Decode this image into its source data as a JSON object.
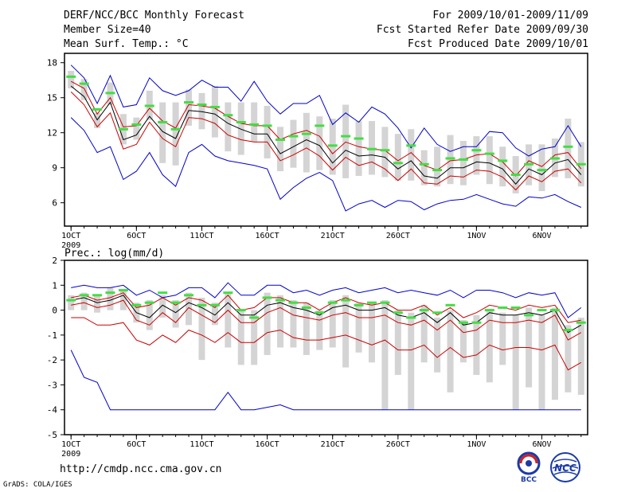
{
  "header": {
    "title": "DERF/NCC/BCC Monthly Forecast",
    "member_size": "Member Size=40",
    "variable": "Mean Surf. Temp.: °C",
    "period": "For 2009/10/01-2009/11/09",
    "refer_date": "Fcst Started Refer Date 2009/09/30",
    "produced_date": "Fcst Produced Date 2009/10/01"
  },
  "footer": {
    "url": "http://cmdp.ncc.cma.gov.cn",
    "credit": "GrADS: COLA/IGES",
    "logo_bcc": "BCC",
    "logo_ncc": "NCC"
  },
  "colors": {
    "envelope": "#0000cc",
    "quartile": "#cc0000",
    "mean": "#000000",
    "obs": "#44dd44",
    "box": "#d4d4d4"
  },
  "chart_data": [
    {
      "type": "line",
      "title": "Mean Surf. Temp.: °C",
      "x_days": 40,
      "x_tick_labels": [
        "1OCT",
        "6OCT",
        "11OCT",
        "16OCT",
        "21OCT",
        "26OCT",
        "1NOV",
        "6NOV"
      ],
      "x_tick_days": [
        1,
        6,
        11,
        16,
        21,
        26,
        32,
        37
      ],
      "year_label": "2009",
      "ylim": [
        4,
        18.8
      ],
      "yticks": [
        6,
        9,
        12,
        15,
        18
      ],
      "series": [
        {
          "name": "max",
          "values": [
            17.8,
            16.7,
            14.5,
            16.9,
            14.2,
            14.4,
            16.7,
            15.6,
            15.2,
            15.6,
            16.5,
            15.9,
            15.9,
            14.7,
            16.4,
            14.7,
            13.6,
            14.5,
            14.5,
            15.2,
            12.7,
            13.7,
            12.9,
            14.2,
            13.6,
            12.4,
            10.7,
            12.4,
            11.0,
            10.4,
            10.8,
            10.8,
            12.1,
            12.0,
            10.7,
            10.0,
            10.6,
            10.8,
            12.6,
            10.8
          ]
        },
        {
          "name": "q75",
          "values": [
            16.4,
            15.8,
            13.6,
            15.0,
            12.5,
            12.6,
            14.1,
            13.0,
            12.4,
            14.4,
            14.3,
            14.1,
            13.4,
            12.8,
            12.6,
            12.6,
            11.4,
            11.9,
            12.2,
            11.7,
            10.2,
            11.2,
            10.8,
            10.6,
            10.5,
            9.6,
            10.3,
            9.2,
            8.8,
            9.6,
            9.7,
            10.1,
            10.2,
            9.5,
            8.3,
            9.6,
            9.1,
            10.1,
            10.3,
            8.9
          ]
        },
        {
          "name": "mean",
          "values": [
            16.0,
            15.1,
            13.1,
            14.6,
            11.4,
            11.8,
            13.4,
            12.1,
            11.5,
            13.9,
            13.8,
            13.6,
            12.8,
            12.3,
            11.9,
            11.9,
            10.2,
            10.8,
            11.4,
            10.9,
            9.4,
            10.5,
            10.0,
            10.1,
            9.9,
            8.9,
            9.6,
            8.3,
            8.1,
            9.0,
            9.0,
            9.5,
            9.4,
            8.9,
            7.6,
            8.9,
            8.4,
            9.4,
            9.7,
            8.4
          ]
        },
        {
          "name": "q25",
          "values": [
            15.5,
            14.4,
            12.5,
            13.7,
            10.6,
            11.0,
            12.9,
            11.5,
            10.8,
            13.3,
            13.2,
            12.8,
            11.8,
            11.4,
            11.2,
            11.2,
            9.6,
            10.1,
            10.7,
            10.0,
            8.8,
            9.9,
            9.2,
            9.5,
            8.9,
            7.9,
            8.9,
            7.7,
            7.6,
            8.3,
            8.2,
            8.8,
            8.7,
            8.2,
            7.1,
            8.3,
            7.8,
            8.7,
            8.9,
            7.7
          ]
        },
        {
          "name": "min",
          "values": [
            13.3,
            12.2,
            10.3,
            10.8,
            8.0,
            8.7,
            10.3,
            8.4,
            7.4,
            10.3,
            11.0,
            10.0,
            9.6,
            9.4,
            9.2,
            8.9,
            6.3,
            7.3,
            8.1,
            8.6,
            7.9,
            5.3,
            5.9,
            6.2,
            5.6,
            6.2,
            6.1,
            5.4,
            5.9,
            6.2,
            6.3,
            6.7,
            6.3,
            5.9,
            5.7,
            6.5,
            6.4,
            6.7,
            6.1,
            5.6
          ]
        },
        {
          "name": "obs",
          "values": [
            16.8,
            16.2,
            14.0,
            15.4,
            12.3,
            12.7,
            14.3,
            12.9,
            12.3,
            14.6,
            14.4,
            14.2,
            13.5,
            12.9,
            12.7,
            12.6,
            11.4,
            11.7,
            11.9,
            12.6,
            10.9,
            11.7,
            11.5,
            10.6,
            10.5,
            9.4,
            10.9,
            9.3,
            8.8,
            9.8,
            9.7,
            10.5,
            10.2,
            9.6,
            8.4,
            9.3,
            8.8,
            9.8,
            10.8,
            9.3
          ]
        }
      ],
      "box_ranges": [
        [
          15.8,
          17.3
        ],
        [
          14.8,
          16.6
        ],
        [
          12.4,
          13.7
        ],
        [
          14.4,
          16.3
        ],
        [
          11.0,
          13.6
        ],
        [
          11.4,
          13.3
        ],
        [
          13.1,
          15.6
        ],
        [
          9.4,
          14.6
        ],
        [
          9.2,
          14.6
        ],
        [
          12.6,
          15.7
        ],
        [
          12.3,
          15.4
        ],
        [
          11.6,
          16.0
        ],
        [
          10.4,
          14.6
        ],
        [
          10.1,
          14.6
        ],
        [
          11.2,
          14.6
        ],
        [
          9.8,
          14.3
        ],
        [
          8.7,
          12.5
        ],
        [
          9.0,
          13.1
        ],
        [
          8.6,
          13.7
        ],
        [
          8.8,
          13.4
        ],
        [
          8.4,
          13.2
        ],
        [
          8.1,
          14.4
        ],
        [
          8.3,
          13.0
        ],
        [
          8.4,
          13.0
        ],
        [
          8.2,
          12.5
        ],
        [
          7.9,
          11.9
        ],
        [
          7.9,
          12.3
        ],
        [
          7.5,
          10.5
        ],
        [
          7.4,
          10.8
        ],
        [
          7.6,
          11.8
        ],
        [
          7.5,
          11.3
        ],
        [
          8.4,
          11.7
        ],
        [
          7.6,
          11.7
        ],
        [
          7.4,
          10.8
        ],
        [
          6.8,
          10.0
        ],
        [
          7.5,
          11.0
        ],
        [
          7.0,
          11.0
        ],
        [
          8.2,
          11.5
        ],
        [
          8.1,
          13.2
        ],
        [
          7.4,
          11.2
        ]
      ]
    },
    {
      "type": "line",
      "title": "Prec.: log(mm/d)",
      "x_days": 40,
      "x_tick_labels": [
        "1OCT",
        "6OCT",
        "11OCT",
        "16OCT",
        "21OCT",
        "26OCT",
        "1NOV",
        "6NOV"
      ],
      "x_tick_days": [
        1,
        6,
        11,
        16,
        21,
        26,
        32,
        37
      ],
      "year_label": "2009",
      "ylim": [
        -5,
        2
      ],
      "yticks": [
        -5,
        -4,
        -3,
        -2,
        -1,
        0,
        1,
        2
      ],
      "series": [
        {
          "name": "max",
          "values": [
            0.9,
            1.0,
            0.9,
            0.9,
            1.0,
            0.6,
            0.8,
            0.5,
            0.6,
            0.9,
            0.9,
            0.5,
            1.1,
            0.6,
            0.6,
            1.0,
            1.0,
            0.7,
            0.8,
            0.6,
            0.8,
            0.9,
            0.7,
            0.8,
            0.9,
            0.7,
            0.8,
            0.7,
            0.6,
            0.8,
            0.5,
            0.8,
            0.8,
            0.7,
            0.5,
            0.7,
            0.6,
            0.7,
            -0.3,
            0.1
          ]
        },
        {
          "name": "q75",
          "values": [
            0.5,
            0.6,
            0.4,
            0.5,
            0.7,
            0.1,
            0.2,
            0.5,
            0.2,
            0.5,
            0.4,
            0.1,
            0.6,
            0.0,
            0.1,
            0.5,
            0.5,
            0.3,
            0.3,
            0.0,
            0.3,
            0.5,
            0.3,
            0.2,
            0.3,
            0.0,
            0.0,
            0.2,
            -0.2,
            0.1,
            -0.3,
            -0.1,
            0.2,
            0.1,
            0.0,
            0.2,
            0.1,
            0.2,
            -0.5,
            -0.4
          ]
        },
        {
          "name": "mean",
          "values": [
            0.4,
            0.5,
            0.3,
            0.4,
            0.6,
            -0.1,
            -0.3,
            0.2,
            -0.1,
            0.3,
            0.1,
            -0.2,
            0.3,
            -0.2,
            -0.2,
            0.2,
            0.3,
            0.1,
            0.0,
            -0.2,
            0.1,
            0.2,
            0.0,
            0.0,
            0.1,
            -0.2,
            -0.3,
            -0.1,
            -0.5,
            -0.1,
            -0.6,
            -0.5,
            -0.1,
            -0.2,
            -0.2,
            -0.1,
            -0.2,
            0.0,
            -0.9,
            -0.6
          ]
        },
        {
          "name": "q25",
          "values": [
            0.2,
            0.3,
            0.1,
            0.2,
            0.4,
            -0.4,
            -0.6,
            -0.1,
            -0.5,
            0.1,
            -0.2,
            -0.5,
            0.0,
            -0.5,
            -0.5,
            -0.1,
            0.1,
            -0.2,
            -0.3,
            -0.4,
            -0.2,
            -0.1,
            -0.3,
            -0.3,
            -0.2,
            -0.5,
            -0.6,
            -0.4,
            -0.8,
            -0.4,
            -0.9,
            -0.8,
            -0.4,
            -0.5,
            -0.5,
            -0.4,
            -0.5,
            -0.2,
            -1.2,
            -0.9
          ]
        },
        {
          "name": "min",
          "values": [
            -1.6,
            -2.7,
            -2.9,
            -4.0,
            -4.0,
            -4.0,
            -4.0,
            -4.0,
            -4.0,
            -4.0,
            -4.0,
            -4.0,
            -3.3,
            -4.0,
            -4.0,
            -3.9,
            -3.8,
            -4.0,
            -4.0,
            -4.0,
            -4.0,
            -4.0,
            -4.0,
            -4.0,
            -4.0,
            -4.0,
            -4.0,
            -4.0,
            -4.0,
            -4.0,
            -4.0,
            -4.0,
            -4.0,
            -4.0,
            -4.0,
            -4.0,
            -4.0,
            -4.0,
            -4.0,
            -4.0
          ]
        },
        {
          "name": "p10",
          "values": [
            -0.3,
            -0.3,
            -0.6,
            -0.6,
            -0.5,
            -1.2,
            -1.4,
            -1.0,
            -1.3,
            -0.8,
            -1.0,
            -1.3,
            -0.9,
            -1.3,
            -1.3,
            -0.9,
            -0.8,
            -1.1,
            -1.2,
            -1.2,
            -1.1,
            -1.0,
            -1.2,
            -1.4,
            -1.2,
            -1.6,
            -1.6,
            -1.4,
            -1.9,
            -1.5,
            -1.9,
            -1.8,
            -1.4,
            -1.6,
            -1.5,
            -1.5,
            -1.6,
            -1.4,
            -2.4,
            -2.1
          ]
        },
        {
          "name": "obs",
          "values": [
            0.4,
            0.6,
            0.6,
            0.7,
            0.8,
            0.2,
            0.3,
            0.7,
            0.3,
            0.6,
            0.2,
            0.2,
            0.7,
            0.0,
            -0.3,
            0.5,
            0.4,
            0.3,
            0.1,
            -0.1,
            0.3,
            0.4,
            0.2,
            0.3,
            0.3,
            -0.1,
            -0.3,
            0.0,
            -0.1,
            0.2,
            -0.5,
            -0.5,
            0.0,
            0.1,
            0.1,
            -0.2,
            0.0,
            0.0,
            -0.8,
            -0.5
          ]
        }
      ],
      "box_ranges": [
        [
          0.0,
          0.6
        ],
        [
          0.0,
          0.7
        ],
        [
          -0.1,
          0.6
        ],
        [
          0.0,
          0.9
        ],
        [
          0.0,
          0.8
        ],
        [
          -0.5,
          0.3
        ],
        [
          -0.8,
          0.4
        ],
        [
          -0.3,
          0.6
        ],
        [
          -0.7,
          0.4
        ],
        [
          -0.6,
          0.7
        ],
        [
          -2.0,
          0.5
        ],
        [
          -0.6,
          0.3
        ],
        [
          -1.5,
          0.7
        ],
        [
          -2.2,
          0.0
        ],
        [
          -2.2,
          0.0
        ],
        [
          -1.8,
          0.7
        ],
        [
          -1.5,
          0.6
        ],
        [
          -1.5,
          0.4
        ],
        [
          -1.8,
          0.3
        ],
        [
          -1.6,
          0.0
        ],
        [
          -1.5,
          0.4
        ],
        [
          -2.3,
          0.6
        ],
        [
          -1.7,
          0.3
        ],
        [
          -2.1,
          0.3
        ],
        [
          -4.0,
          0.4
        ],
        [
          -2.6,
          0.0
        ],
        [
          -4.0,
          -0.1
        ],
        [
          -2.1,
          0.2
        ],
        [
          -2.5,
          -0.3
        ],
        [
          -3.3,
          0.0
        ],
        [
          -2.1,
          -0.4
        ],
        [
          -2.6,
          -0.2
        ],
        [
          -2.9,
          0.0
        ],
        [
          -2.2,
          -0.1
        ],
        [
          -4.0,
          -0.2
        ],
        [
          -3.1,
          0.1
        ],
        [
          -4.0,
          -0.2
        ],
        [
          -3.6,
          0.1
        ],
        [
          -3.3,
          -0.6
        ],
        [
          -3.4,
          -0.3
        ]
      ]
    }
  ]
}
